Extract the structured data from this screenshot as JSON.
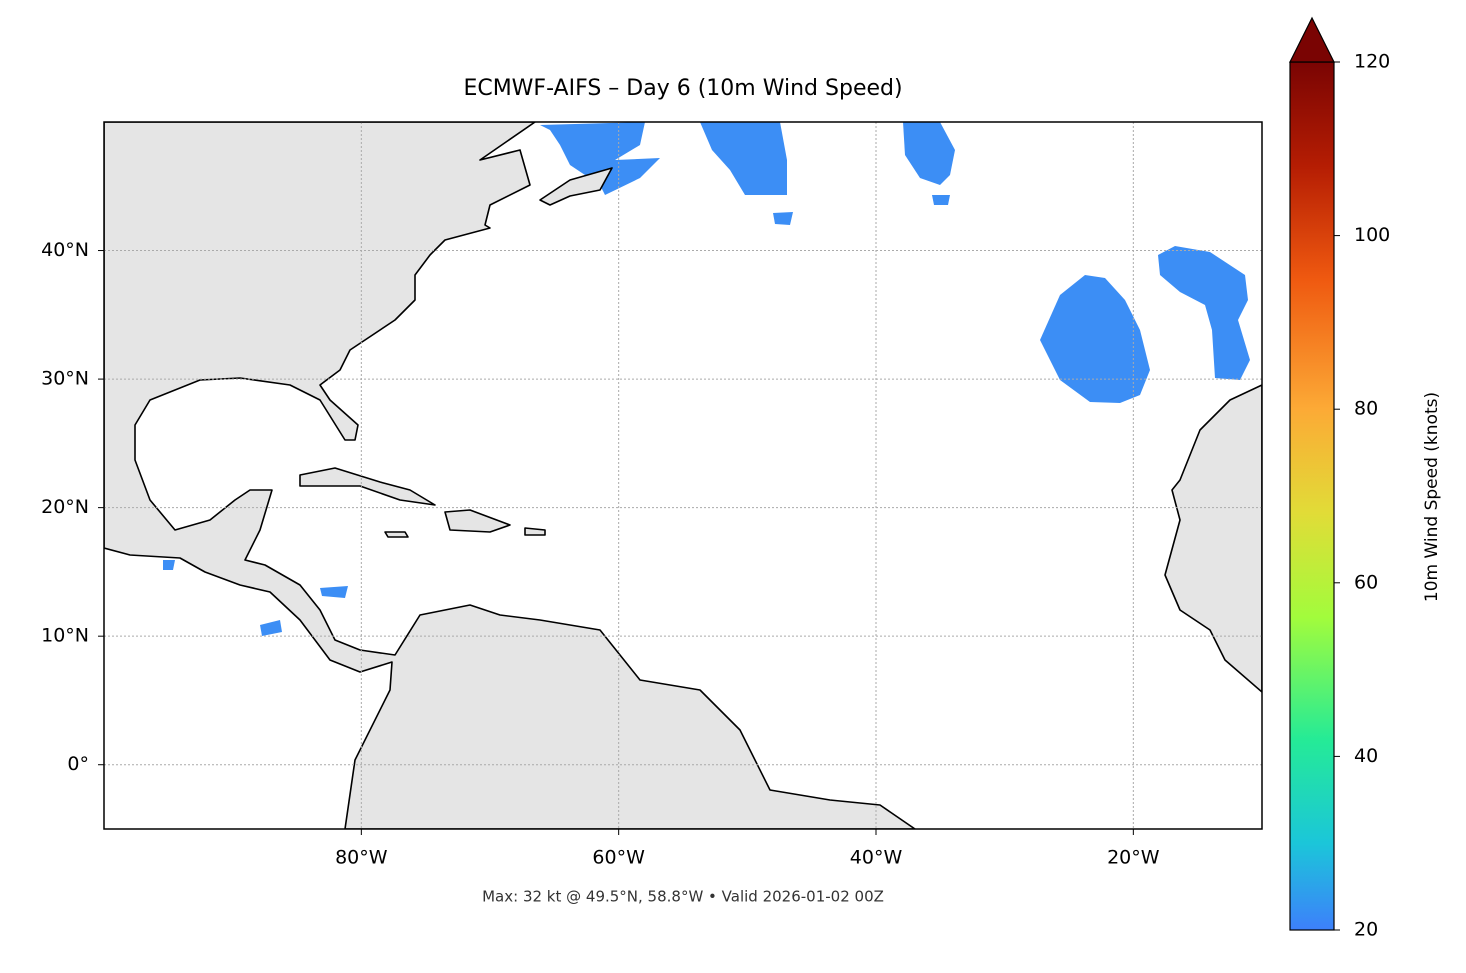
{
  "title": "ECMWF-AIFS – Day 6 (10m Wind Speed)",
  "footnote": "Max: 32 kt @ 49.5°N, 58.8°W • Valid 2026-01-02 00Z",
  "map": {
    "xlim": [
      -100,
      -10
    ],
    "ylim": [
      -5,
      50
    ],
    "xticks": [
      {
        "value": -80,
        "label": "80°W"
      },
      {
        "value": -60,
        "label": "60°W"
      },
      {
        "value": -40,
        "label": "40°W"
      },
      {
        "value": -20,
        "label": "20°W"
      }
    ],
    "yticks": [
      {
        "value": 0,
        "label": "0°"
      },
      {
        "value": 10,
        "label": "10°N"
      },
      {
        "value": 20,
        "label": "20°N"
      },
      {
        "value": 30,
        "label": "30°N"
      },
      {
        "value": 40,
        "label": "40°N"
      }
    ],
    "grid": true
  },
  "colorbar": {
    "label": "10m Wind Speed (knots)",
    "lim": [
      20,
      120
    ],
    "ticks": [
      20,
      40,
      60,
      80,
      100,
      120
    ]
  }
}
